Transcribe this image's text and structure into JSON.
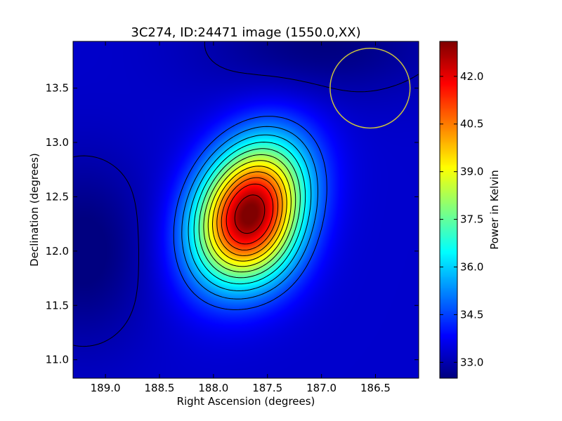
{
  "chart_data": {
    "type": "heatmap",
    "title": "3C274, ID:24471 image (1550.0,XX)",
    "xlabel": "Right Ascension (degrees)",
    "ylabel": "Declination (degrees)",
    "xlim": [
      189.3,
      186.1
    ],
    "ylim": [
      10.83,
      13.93
    ],
    "x_ticks": [
      189.0,
      188.5,
      188.0,
      187.5,
      187.0,
      186.5
    ],
    "x_tick_labels": [
      "189.0",
      "188.5",
      "188.0",
      "187.5",
      "187.0",
      "186.5"
    ],
    "y_ticks": [
      11.0,
      11.5,
      12.0,
      12.5,
      13.0,
      13.5
    ],
    "y_tick_labels": [
      "11.0",
      "11.5",
      "12.0",
      "12.5",
      "13.0",
      "13.5"
    ],
    "colorbar": {
      "label": "Power in Kelvin",
      "range": [
        32.5,
        43.1
      ],
      "ticks": [
        33.0,
        34.5,
        36.0,
        37.5,
        39.0,
        40.5,
        42.0
      ],
      "tick_labels": [
        "33.0",
        "34.5",
        "36.0",
        "37.5",
        "39.0",
        "40.5",
        "42.0"
      ],
      "colormap": "jet"
    },
    "peak": {
      "ra": 187.67,
      "dec": 12.38,
      "value": 43.0
    },
    "contour_levels": [
      33.0,
      34.5,
      35.2,
      35.9,
      36.6,
      37.3,
      38.0,
      38.7,
      39.4,
      40.1,
      40.8,
      41.5,
      42.5
    ],
    "beam_circle": {
      "ra": 186.55,
      "dec": 13.5,
      "radius_deg": 0.37,
      "color": "#c8c040"
    },
    "grid": false
  }
}
